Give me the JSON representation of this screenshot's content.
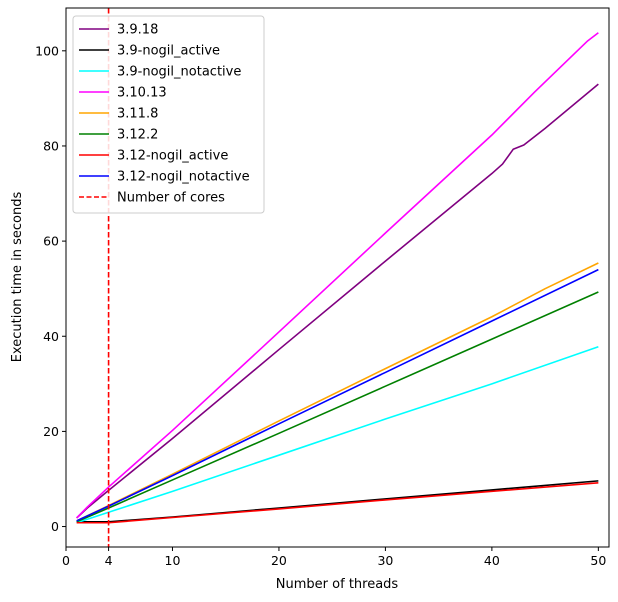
{
  "chart_data": {
    "type": "line",
    "title": "",
    "xlabel": "Number of threads",
    "ylabel": "Execution time in seconds",
    "xlim": [
      0,
      51
    ],
    "ylim": [
      -4.3,
      109
    ],
    "xticks": [
      0,
      4,
      10,
      20,
      30,
      40,
      50
    ],
    "yticks": [
      0,
      20,
      40,
      60,
      80,
      100
    ],
    "legend_position": "top-left",
    "grid": false,
    "series": [
      {
        "name": "3.9.18",
        "color": "#800080",
        "x": [
          1,
          2,
          4,
          10,
          20,
          30,
          40,
          41,
          42,
          43,
          45,
          50
        ],
        "y": [
          1.8,
          3.9,
          7.6,
          18.5,
          37.2,
          55.8,
          74.2,
          76.2,
          79.3,
          80.2,
          83.7,
          93.0
        ]
      },
      {
        "name": "3.9-nogil_active",
        "color": "#000000",
        "x": [
          1,
          4,
          10,
          20,
          30,
          40,
          50
        ],
        "y": [
          1.0,
          1.0,
          2.0,
          3.9,
          5.8,
          7.7,
          9.6
        ]
      },
      {
        "name": "3.9-nogil_notactive",
        "color": "#00ffff",
        "x": [
          1,
          4,
          10,
          20,
          30,
          40,
          50
        ],
        "y": [
          0.8,
          3.0,
          7.4,
          15.0,
          22.6,
          30.0,
          37.8
        ]
      },
      {
        "name": "3.10.13",
        "color": "#ff00ff",
        "x": [
          1,
          2,
          4,
          10,
          20,
          30,
          40,
          44,
          49,
          50
        ],
        "y": [
          1.8,
          4.1,
          8.3,
          20.2,
          40.9,
          61.7,
          82.3,
          91.3,
          102.1,
          103.8
        ]
      },
      {
        "name": "3.11.8",
        "color": "#ffa500",
        "x": [
          1,
          4,
          10,
          20,
          30,
          40,
          45,
          50
        ],
        "y": [
          1.2,
          4.4,
          11.0,
          22.2,
          33.2,
          44.1,
          50.0,
          55.4
        ]
      },
      {
        "name": "3.12.2",
        "color": "#008000",
        "x": [
          1,
          4,
          10,
          20,
          30,
          40,
          50
        ],
        "y": [
          1.0,
          3.9,
          9.8,
          19.6,
          29.5,
          39.4,
          49.3
        ]
      },
      {
        "name": "3.12-nogil_active",
        "color": "#ff0000",
        "x": [
          1,
          4,
          10,
          20,
          30,
          40,
          50
        ],
        "y": [
          0.8,
          0.8,
          1.9,
          3.7,
          5.6,
          7.4,
          9.2
        ]
      },
      {
        "name": "3.12-nogil_notactive",
        "color": "#0000ff",
        "x": [
          1,
          4,
          10,
          20,
          30,
          40,
          50
        ],
        "y": [
          1.2,
          4.3,
          10.7,
          21.6,
          32.4,
          43.2,
          54.0
        ]
      }
    ],
    "annotations": [
      {
        "name": "Number of cores",
        "type": "vline",
        "x": 4,
        "color": "#ff0000",
        "style": "dashed"
      }
    ]
  }
}
